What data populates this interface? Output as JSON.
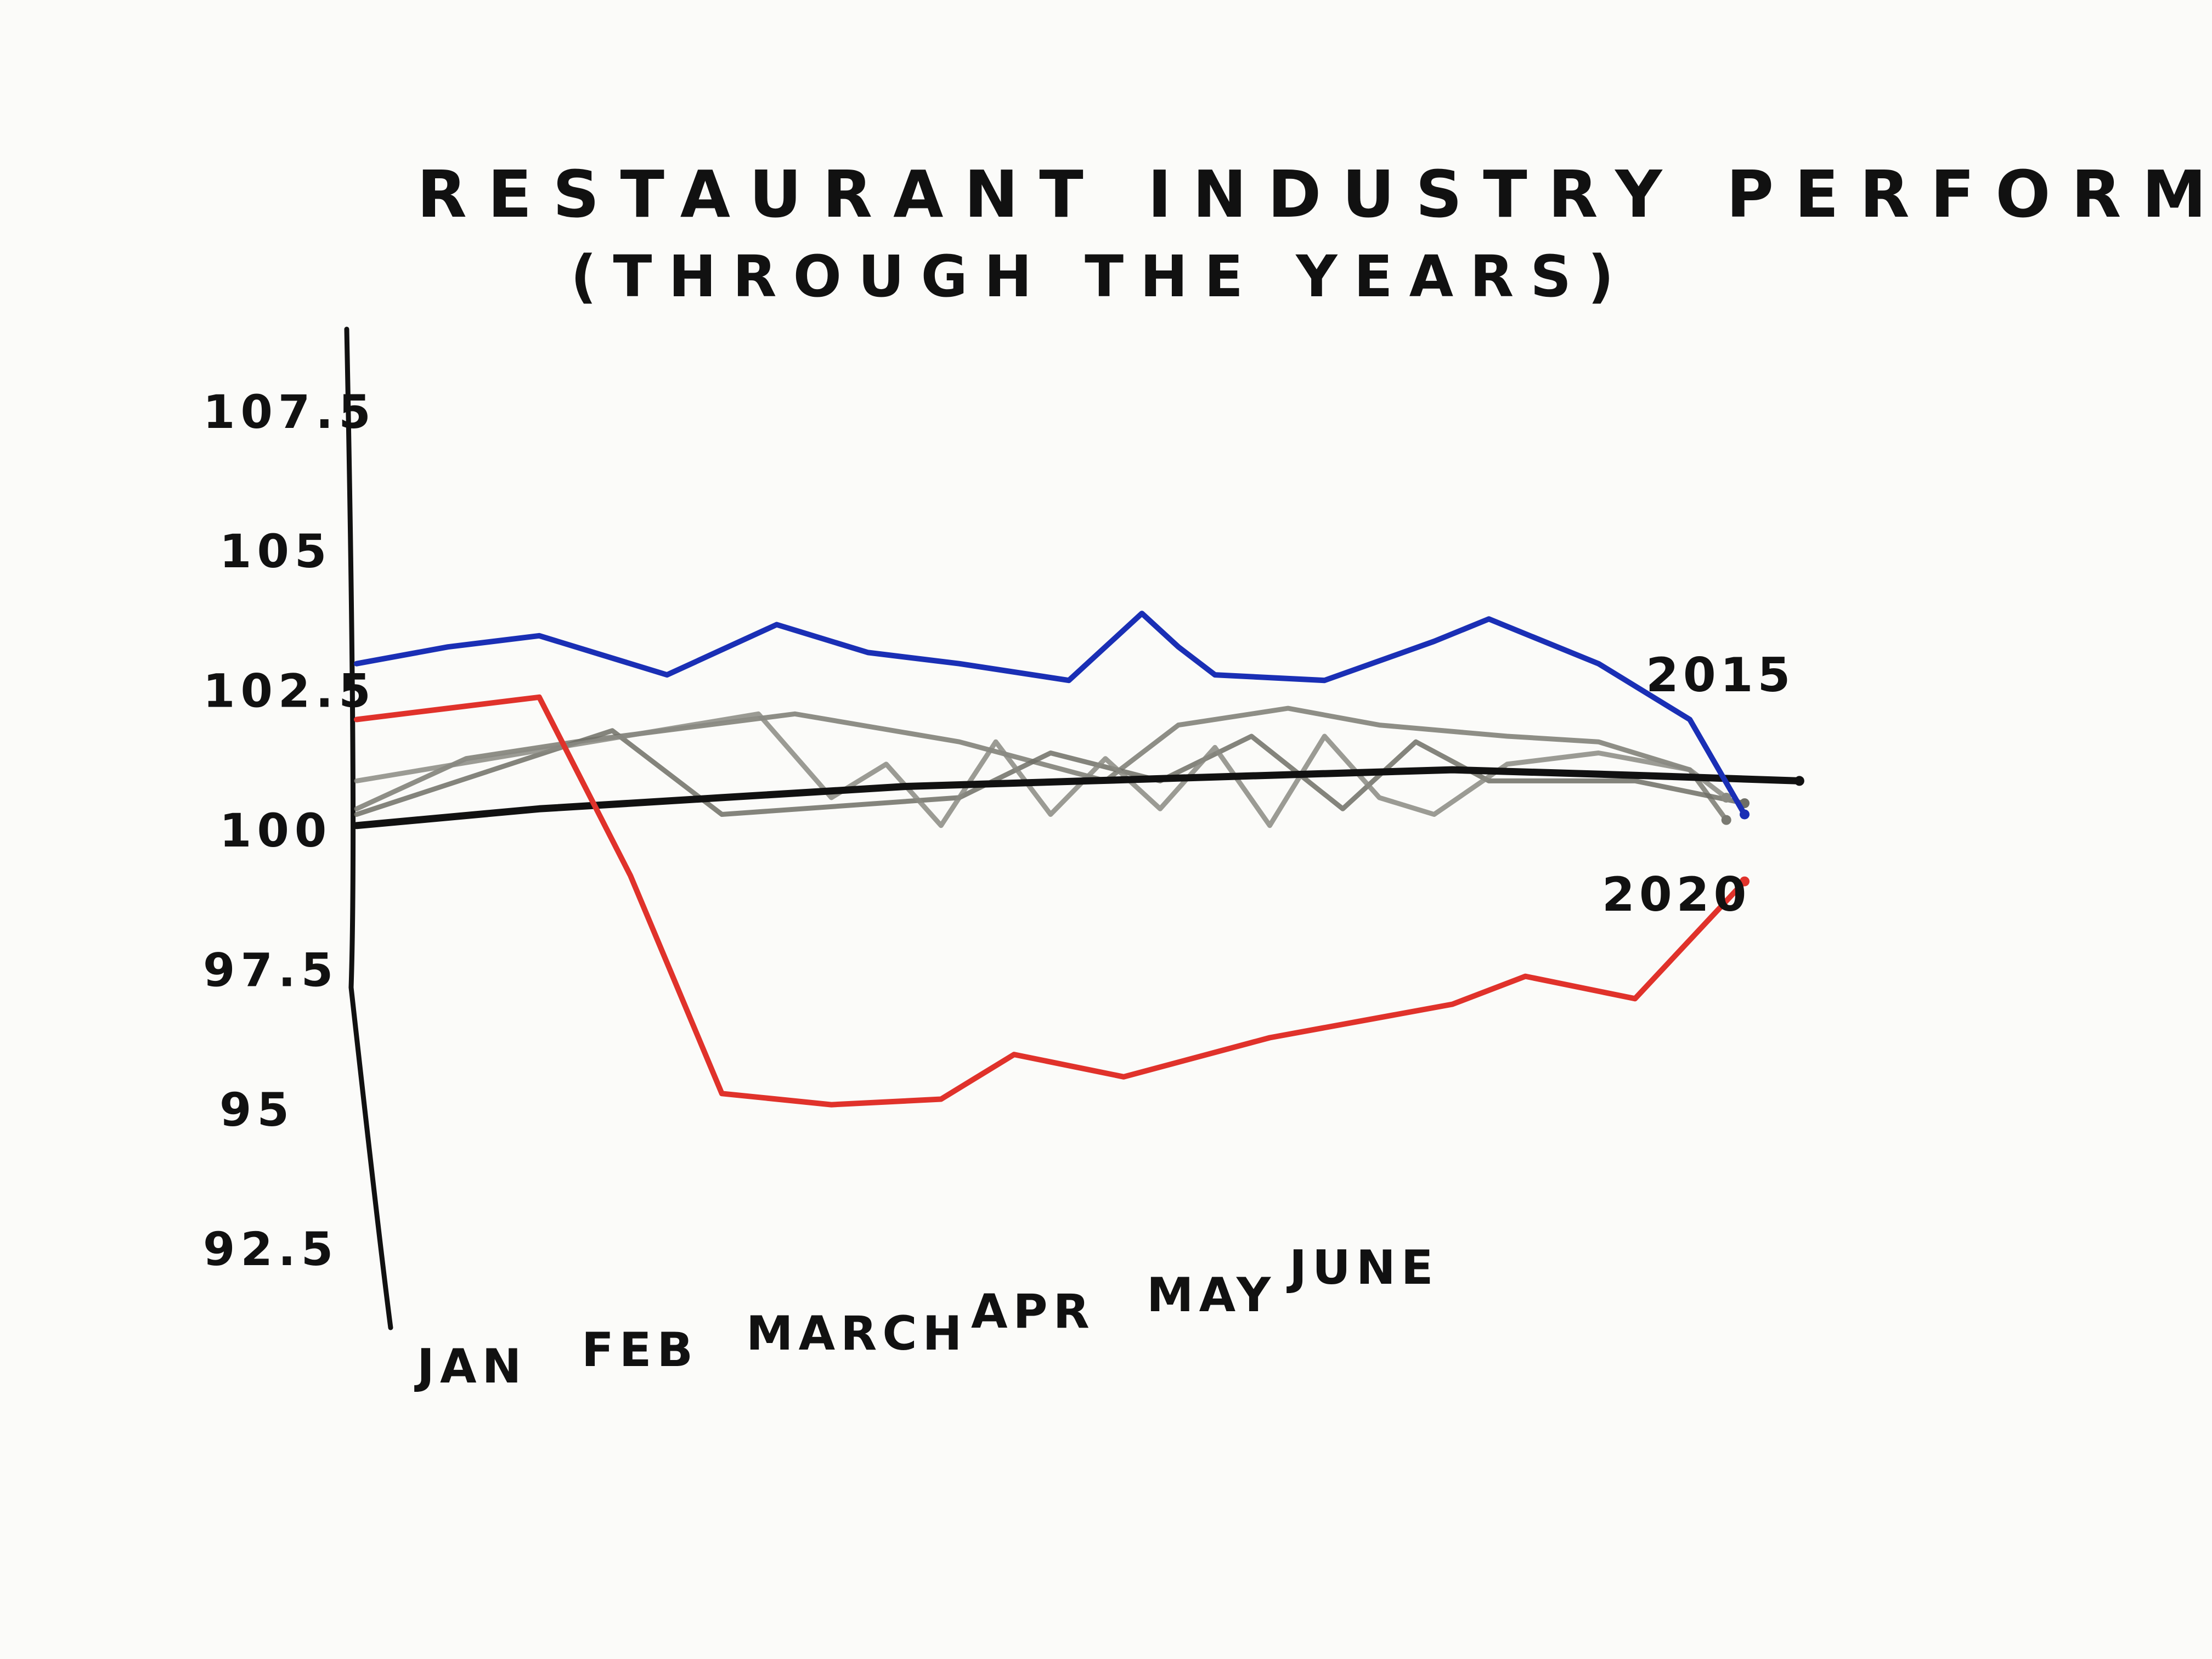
{
  "chart_data": {
    "type": "line",
    "title": "RESTAURANT INDUSTRY PERFORMANCE INDEX",
    "subtitle": "(THROUGH THE YEARS)",
    "xlabel": "",
    "ylabel": "",
    "ylim": [
      91.5,
      108.5
    ],
    "yticks": [
      "107.5",
      "105",
      "102.5",
      "100",
      "97.5",
      "95",
      "92.5"
    ],
    "xticks": [
      "JAN",
      "FEB",
      "MARCH",
      "APR",
      "MAY",
      "JUNE"
    ],
    "xlim": [
      0,
      7.6
    ],
    "grid": false,
    "legend": "none",
    "series": [
      {
        "name": "2015",
        "color": "#1a2fb5",
        "x": [
          0,
          0.5,
          1,
          1.7,
          2.3,
          2.8,
          3.3,
          3.9,
          4.3,
          4.5,
          4.7,
          5.3,
          5.9,
          6.2,
          6.8,
          7.3,
          7.6
        ],
        "y": [
          103.0,
          103.3,
          103.5,
          102.8,
          103.7,
          103.2,
          103.0,
          102.7,
          103.9,
          103.3,
          102.8,
          102.7,
          103.4,
          103.8,
          103.0,
          102.0,
          100.3
        ]
      },
      {
        "name": "2020",
        "color": "#e0322b",
        "x": [
          0,
          0.5,
          1,
          1.5,
          2,
          2.6,
          3.2,
          3.6,
          4.2,
          5,
          6,
          6.4,
          7.0,
          7.6
        ],
        "y": [
          102.0,
          102.2,
          102.4,
          99.2,
          95.3,
          95.1,
          95.2,
          96.0,
          95.6,
          96.3,
          96.9,
          97.4,
          97.0,
          99.1
        ]
      },
      {
        "name": "",
        "color": "#111111",
        "x": [
          0,
          1,
          2,
          3,
          4,
          5,
          6,
          7,
          7.9
        ],
        "y": [
          100.1,
          100.4,
          100.6,
          100.8,
          100.9,
          101.0,
          101.1,
          101.0,
          100.9
        ]
      },
      {
        "name": "",
        "color": "#7a7a72",
        "x": [
          0,
          0.6,
          1.2,
          2.4,
          3.3,
          4.1,
          4.5,
          5.1,
          5.6,
          6.3,
          6.8,
          7.3,
          7.5
        ],
        "y": [
          100.4,
          101.3,
          101.6,
          102.1,
          101.6,
          100.9,
          101.9,
          102.2,
          101.9,
          101.7,
          101.6,
          101.1,
          100.2
        ]
      },
      {
        "name": "",
        "color": "#6e6e66",
        "x": [
          0,
          1.4,
          2.0,
          3.3,
          3.8,
          4.4,
          4.9,
          5.4,
          5.8,
          6.2,
          7.0,
          7.6
        ],
        "y": [
          100.3,
          101.8,
          100.3,
          100.6,
          101.4,
          100.9,
          101.7,
          100.4,
          101.6,
          100.9,
          100.9,
          100.5
        ]
      },
      {
        "name": "",
        "color": "#8a8a82",
        "x": [
          0,
          2.2,
          2.6,
          2.9,
          3.2,
          3.5,
          3.8,
          4.1,
          4.4,
          4.7,
          5.0,
          5.3,
          5.6,
          5.9,
          6.3,
          6.8,
          7.3,
          7.5
        ],
        "y": [
          100.9,
          102.1,
          100.6,
          101.2,
          100.1,
          101.6,
          100.3,
          101.3,
          100.4,
          101.5,
          100.1,
          101.7,
          100.6,
          100.3,
          101.2,
          101.4,
          101.1,
          100.6
        ]
      }
    ],
    "series_labels": [
      "2015",
      "2020"
    ]
  }
}
